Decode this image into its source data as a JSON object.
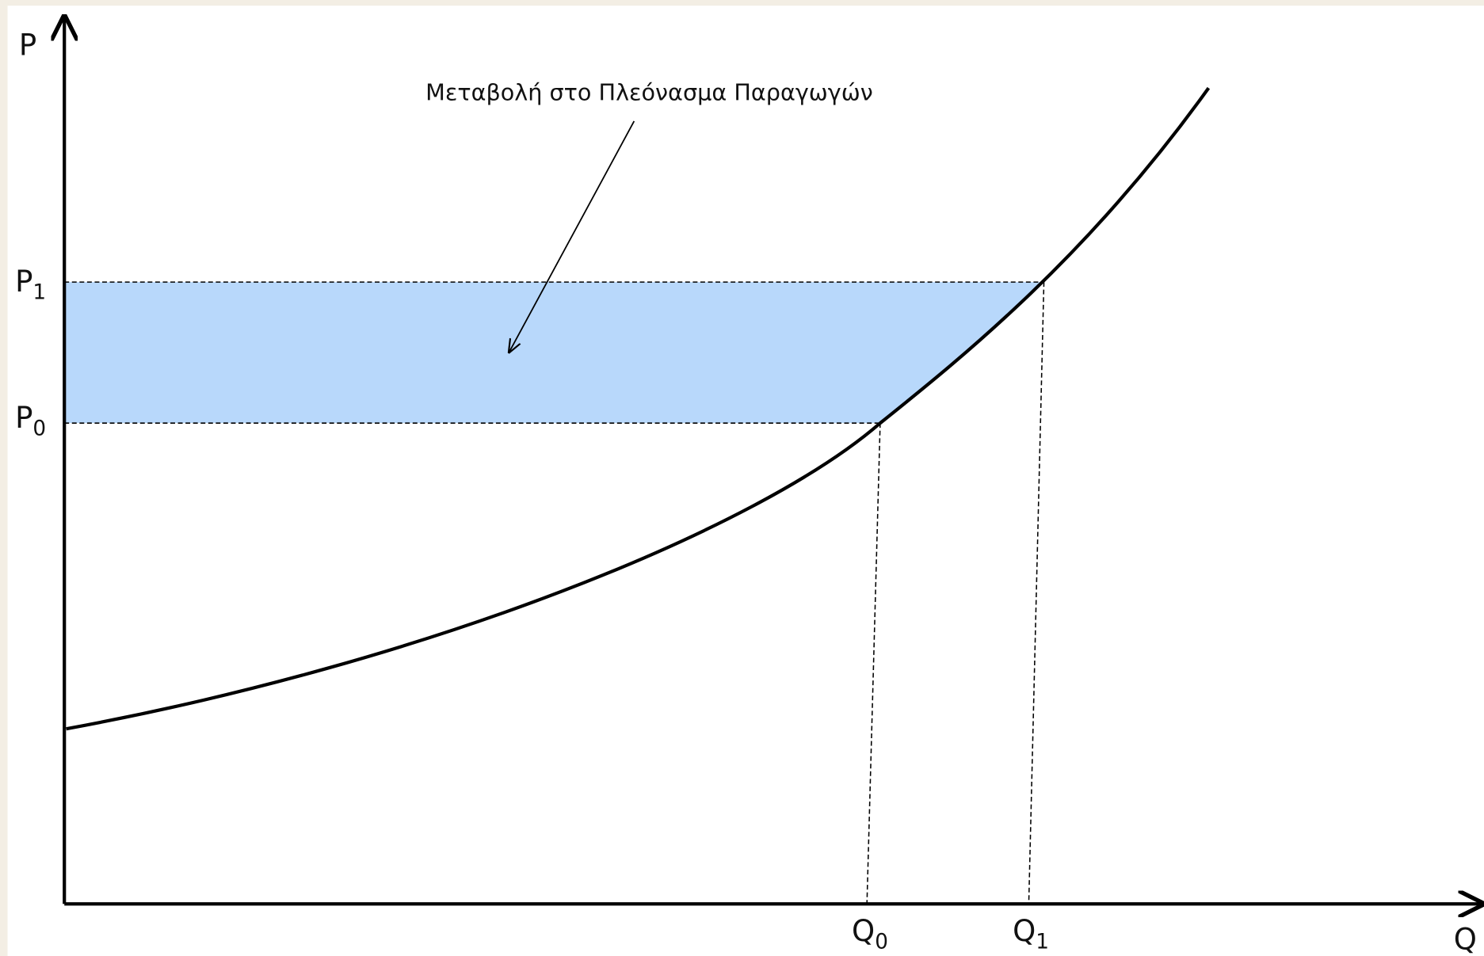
{
  "axes": {
    "y_label": "P",
    "x_label": "Q"
  },
  "price_levels": [
    {
      "symbol": "P",
      "subscript": "1"
    },
    {
      "symbol": "P",
      "subscript": "0"
    }
  ],
  "quantity_levels": [
    {
      "symbol": "Q",
      "subscript": "0"
    },
    {
      "symbol": "Q",
      "subscript": "1"
    }
  ],
  "annotation": "Μεταβολή στο Πλεόνασμα Παραγωγών"
}
